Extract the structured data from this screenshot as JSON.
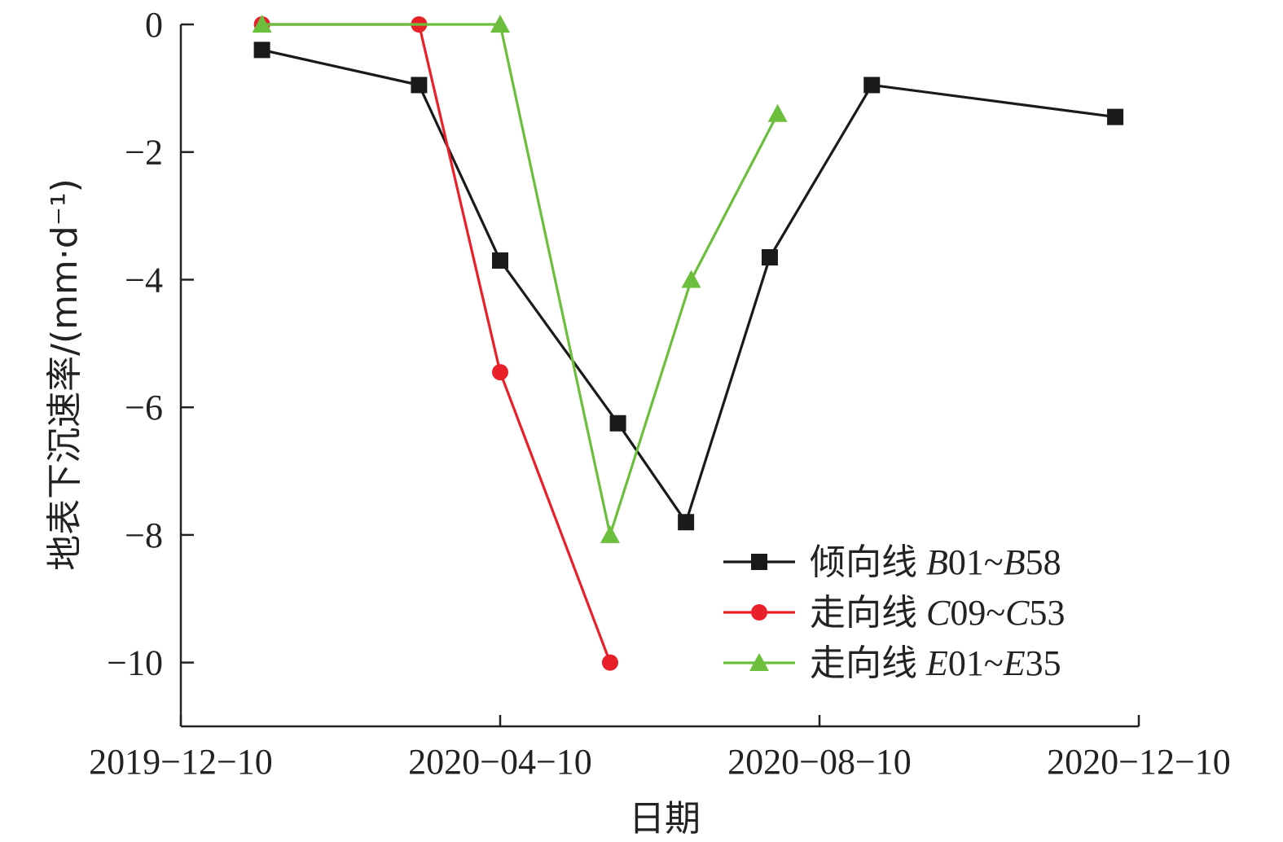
{
  "chart_data": {
    "type": "line",
    "title": "",
    "xlabel": "日期",
    "ylabel": "地表下沉速率/(mm·d⁻¹)",
    "xlim": [
      "2019-12-10",
      "2020-12-10"
    ],
    "ylim": [
      -11,
      0
    ],
    "x_ticks": [
      "2019-12-10",
      "2020-04-10",
      "2020-08-10",
      "2020-12-10"
    ],
    "x_tick_labels": [
      "2019−12−10",
      "2020−04−10",
      "2020−08−10",
      "2020−12−10"
    ],
    "y_ticks": [
      0,
      -2,
      -4,
      -6,
      -8,
      -10
    ],
    "y_tick_labels": [
      "0",
      "−2",
      "−4",
      "−6",
      "−8",
      "−10"
    ],
    "grid": false,
    "legend_position": "bottom-right",
    "series": [
      {
        "name": "倾向线 B01~B58",
        "label_parts": [
          {
            "text": "倾向线 ",
            "italic": false
          },
          {
            "text": "B",
            "italic": true
          },
          {
            "text": "01~",
            "italic": false
          },
          {
            "text": "B",
            "italic": true
          },
          {
            "text": "58",
            "italic": false
          }
        ],
        "color": "#1a1a1a",
        "marker": "square",
        "points": [
          {
            "x": "2020-01-10",
            "y": -0.4
          },
          {
            "x": "2020-03-10",
            "y": -0.95
          },
          {
            "x": "2020-04-10",
            "y": -3.7
          },
          {
            "x": "2020-05-25",
            "y": -6.25
          },
          {
            "x": "2020-06-20",
            "y": -7.8
          },
          {
            "x": "2020-07-22",
            "y": -3.65
          },
          {
            "x": "2020-08-30",
            "y": -0.95
          },
          {
            "x": "2020-12-01",
            "y": -1.45
          }
        ]
      },
      {
        "name": "走向线 C09~C53",
        "label_parts": [
          {
            "text": "走向线 ",
            "italic": false
          },
          {
            "text": "C",
            "italic": true
          },
          {
            "text": "09~",
            "italic": false
          },
          {
            "text": "C",
            "italic": true
          },
          {
            "text": "53",
            "italic": false
          }
        ],
        "color": "#e8202a",
        "marker": "circle",
        "points": [
          {
            "x": "2020-01-10",
            "y": 0
          },
          {
            "x": "2020-03-10",
            "y": 0
          },
          {
            "x": "2020-04-10",
            "y": -5.45
          },
          {
            "x": "2020-05-22",
            "y": -10
          }
        ]
      },
      {
        "name": "走向线 E01~E35",
        "label_parts": [
          {
            "text": "走向线 ",
            "italic": false
          },
          {
            "text": "E",
            "italic": true
          },
          {
            "text": "01~",
            "italic": false
          },
          {
            "text": "E",
            "italic": true
          },
          {
            "text": "35",
            "italic": false
          }
        ],
        "color": "#6cbf3c",
        "marker": "triangle",
        "points": [
          {
            "x": "2020-01-10",
            "y": 0
          },
          {
            "x": "2020-04-10",
            "y": 0
          },
          {
            "x": "2020-05-22",
            "y": -8
          },
          {
            "x": "2020-06-22",
            "y": -4
          },
          {
            "x": "2020-07-25",
            "y": -1.4
          }
        ]
      }
    ]
  }
}
